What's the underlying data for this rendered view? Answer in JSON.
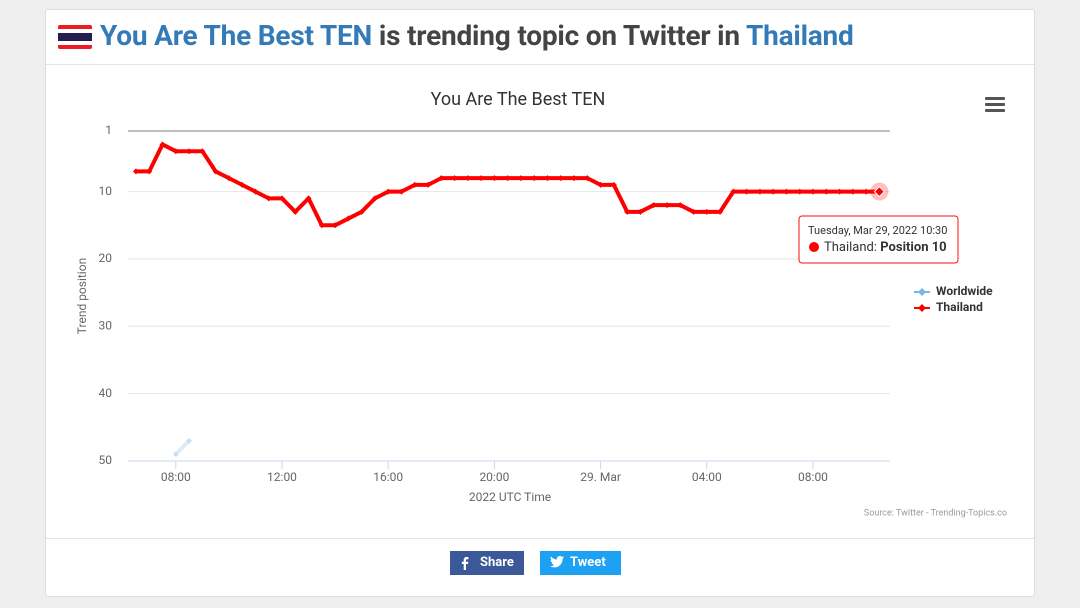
{
  "header": {
    "title_topic": "You Are The Best TEN",
    "title_middle": "is trending topic on Twitter in",
    "title_country": "Thailand"
  },
  "chart_data": {
    "type": "line",
    "title": "You Are The Best TEN",
    "x_label": "2022 UTC Time",
    "y_label": "Trend position",
    "x": [
      6.5,
      7,
      7.5,
      8,
      8.5,
      9,
      9.5,
      10,
      10.5,
      11,
      11.5,
      12,
      12.5,
      13,
      13.5,
      14,
      14.5,
      15,
      15.5,
      16,
      16.5,
      17,
      17.5,
      18,
      18.5,
      19,
      19.5,
      20,
      20.5,
      21,
      21.5,
      22,
      22.5,
      23,
      23.5,
      24,
      24.5,
      25,
      25.5,
      26,
      26.5,
      27,
      27.5,
      28,
      28.5,
      29,
      29.5,
      30,
      30.5,
      31,
      31.5,
      32,
      32.5,
      33,
      33.5,
      34,
      34.5
    ],
    "series": [
      {
        "name": "Worldwide",
        "color": "#7cb5ec",
        "values": [
          null,
          null,
          null,
          49,
          47,
          null,
          null,
          null,
          null,
          null,
          null,
          null,
          null,
          null,
          null,
          null,
          null,
          null,
          null,
          null,
          null,
          null,
          null,
          null,
          null,
          null,
          null,
          null,
          null,
          null,
          null,
          null,
          null,
          null,
          null,
          null,
          null,
          null,
          null,
          null,
          null,
          null,
          null,
          null,
          null,
          null,
          null,
          null,
          null,
          null,
          null,
          null,
          null,
          null,
          null,
          null,
          null
        ]
      },
      {
        "name": "Thailand",
        "color": "#ff0000",
        "values": [
          7,
          7,
          3,
          4,
          4,
          4,
          7,
          8,
          9,
          10,
          11,
          11,
          13,
          11,
          15,
          15,
          14,
          13,
          11,
          10,
          10,
          9,
          9,
          8,
          8,
          8,
          8,
          8,
          8,
          8,
          8,
          8,
          8,
          8,
          8,
          9,
          9,
          13,
          13,
          12,
          12,
          12,
          13,
          13,
          13,
          10,
          10,
          10,
          10,
          10,
          10,
          10,
          10,
          10,
          10,
          10,
          10
        ]
      }
    ],
    "xlim": [
      6.2,
      34.9
    ],
    "xticks": [
      {
        "value": 8,
        "label": "08:00"
      },
      {
        "value": 12,
        "label": "12:00"
      },
      {
        "value": 16,
        "label": "16:00"
      },
      {
        "value": 20,
        "label": "20:00"
      },
      {
        "value": 24,
        "label": "29. Mar"
      },
      {
        "value": 28,
        "label": "04:00"
      },
      {
        "value": 32,
        "label": "08:00"
      }
    ],
    "ylim": [
      1,
      50
    ],
    "yticks": [
      1,
      10,
      20,
      30,
      40,
      50
    ],
    "y_reversed": true,
    "grid": true,
    "tooltip": {
      "date": "Tuesday, Mar 29, 2022 10:30",
      "series": "Thailand: ",
      "value_text": "Position 10"
    },
    "credit": "Source: Twitter - Trending-Topics.co"
  },
  "buttons": {
    "share": "Share",
    "tweet": "Tweet"
  }
}
